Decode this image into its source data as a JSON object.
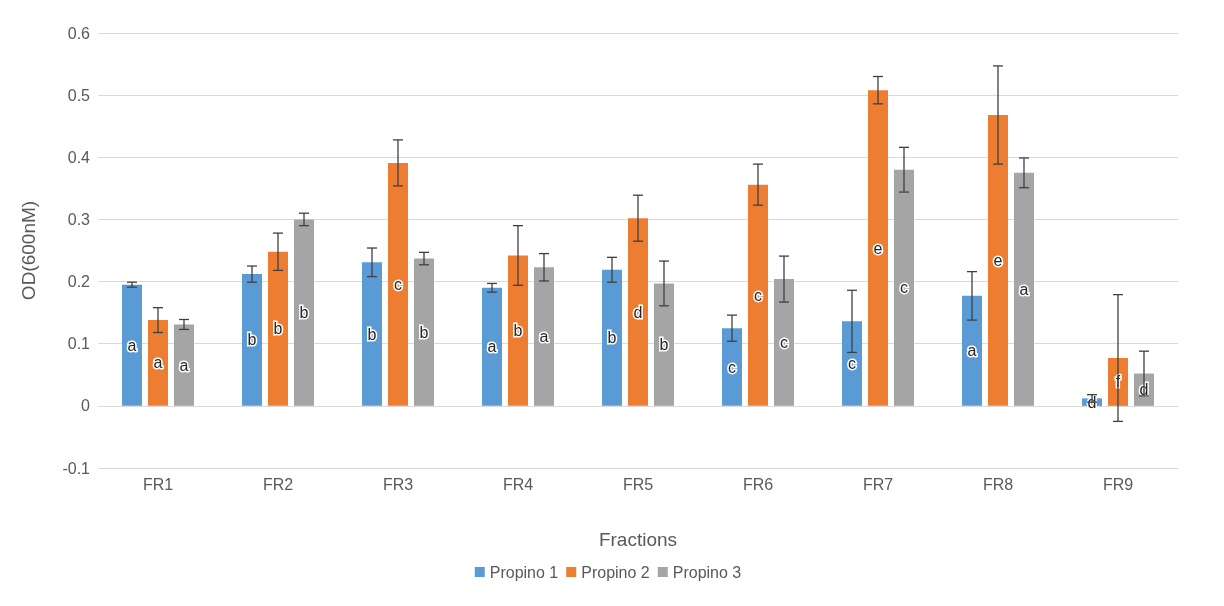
{
  "chart_data": {
    "type": "bar",
    "xlabel": "Fractions",
    "ylabel": "OD(600nM)",
    "categories": [
      "FR1",
      "FR2",
      "FR3",
      "FR4",
      "FR5",
      "FR6",
      "FR7",
      "FR8",
      "FR9"
    ],
    "series": [
      {
        "name": "Propino 1",
        "color": "#5b9bd5",
        "values": [
          0.195,
          0.212,
          0.231,
          0.19,
          0.219,
          0.125,
          0.136,
          0.177,
          0.012
        ],
        "errors": [
          0.004,
          0.013,
          0.023,
          0.007,
          0.02,
          0.021,
          0.05,
          0.039,
          0.006
        ],
        "value_labels": [
          "a",
          "b",
          "b",
          "a",
          "b",
          "c",
          "c",
          "a",
          "d"
        ]
      },
      {
        "name": "Propino 2",
        "color": "#ed7d31",
        "values": [
          0.138,
          0.248,
          0.391,
          0.242,
          0.302,
          0.356,
          0.508,
          0.468,
          0.077
        ],
        "errors": [
          0.02,
          0.03,
          0.037,
          0.048,
          0.037,
          0.033,
          0.022,
          0.079,
          0.102
        ],
        "value_labels": [
          "a",
          "b",
          "c",
          "b",
          "d",
          "c",
          "e",
          "e",
          "f"
        ]
      },
      {
        "name": "Propino 3",
        "color": "#a5a5a5",
        "values": [
          0.131,
          0.3,
          0.237,
          0.223,
          0.197,
          0.204,
          0.38,
          0.375,
          0.052
        ],
        "errors": [
          0.008,
          0.01,
          0.01,
          0.022,
          0.036,
          0.037,
          0.036,
          0.024,
          0.036
        ],
        "value_labels": [
          "a",
          "b",
          "b",
          "a",
          "b",
          "c",
          "c",
          "a",
          "d"
        ]
      }
    ],
    "ylim": [
      -0.1,
      0.6
    ],
    "yticks": [
      -0.1,
      0,
      0.1,
      0.2,
      0.3,
      0.4,
      0.5,
      0.6
    ],
    "grid": "y",
    "legend": "bottom"
  }
}
